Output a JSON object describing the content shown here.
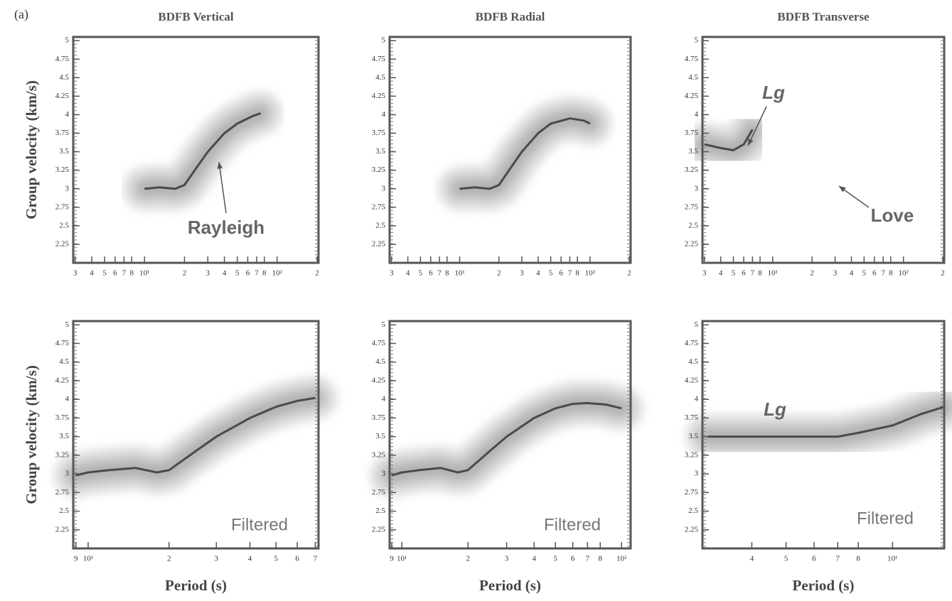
{
  "label": "(a)",
  "chart_data": [
    {
      "type": "line",
      "title": "BDFB Vertical",
      "ylabel": "Group velocity (km/s)",
      "annotations": [
        "Rayleigh"
      ],
      "xlog": true,
      "xlim": [
        2.9,
        205
      ],
      "ylim": [
        2,
        5.05
      ],
      "grid": false,
      "color": "#4a4a4a",
      "xticks": [
        3,
        4,
        5,
        6,
        7,
        8,
        {
          "value": 10,
          "label": "10¹"
        },
        {
          "value": 20,
          "label": "2"
        },
        {
          "value": 30,
          "label": "3"
        },
        {
          "value": 40,
          "label": "4"
        },
        {
          "value": 50,
          "label": "5"
        },
        {
          "value": 60,
          "label": "6"
        },
        {
          "value": 70,
          "label": "7"
        },
        {
          "value": 80,
          "label": "8"
        },
        {
          "value": 100,
          "label": "10²"
        },
        {
          "value": 200,
          "label": "2"
        }
      ],
      "yticks": [
        2.25,
        2.5,
        2.75,
        3,
        3.25,
        3.5,
        3.75,
        4,
        4.25,
        4.5,
        4.75,
        5
      ],
      "x": [
        10,
        13,
        17,
        20,
        25,
        30,
        40,
        50,
        65,
        75
      ],
      "values": [
        3.0,
        3.02,
        3.0,
        3.05,
        3.3,
        3.5,
        3.75,
        3.88,
        3.98,
        4.02
      ]
    },
    {
      "type": "line",
      "title": "BDFB Radial",
      "annotations": [],
      "xlog": true,
      "xlim": [
        2.9,
        205
      ],
      "ylim": [
        2,
        5.05
      ],
      "grid": false,
      "color": "#4a4a4a",
      "xticks": [
        3,
        4,
        5,
        6,
        7,
        8,
        {
          "value": 10,
          "label": "10¹"
        },
        {
          "value": 20,
          "label": "2"
        },
        {
          "value": 30,
          "label": "3"
        },
        {
          "value": 40,
          "label": "4"
        },
        {
          "value": 50,
          "label": "5"
        },
        {
          "value": 60,
          "label": "6"
        },
        {
          "value": 70,
          "label": "7"
        },
        {
          "value": 80,
          "label": "8"
        },
        {
          "value": 100,
          "label": "10²"
        },
        {
          "value": 200,
          "label": "2"
        }
      ],
      "yticks": [
        2.25,
        2.5,
        2.75,
        3,
        3.25,
        3.5,
        3.75,
        4,
        4.25,
        4.5,
        4.75,
        5
      ],
      "x": [
        10,
        13,
        17,
        20,
        25,
        30,
        40,
        50,
        70,
        90,
        100
      ],
      "values": [
        3.0,
        3.02,
        3.0,
        3.05,
        3.3,
        3.5,
        3.75,
        3.88,
        3.95,
        3.92,
        3.88
      ]
    },
    {
      "type": "line",
      "title": "BDFB Transverse",
      "annotations": [
        "Lg",
        "Love"
      ],
      "xlog": true,
      "xlim": [
        2.9,
        205
      ],
      "ylim": [
        2,
        5.05
      ],
      "grid": false,
      "color": "#4a4a4a",
      "xticks": [
        3,
        4,
        5,
        6,
        7,
        8,
        {
          "value": 10,
          "label": "10¹"
        },
        {
          "value": 20,
          "label": "2"
        },
        {
          "value": 30,
          "label": "3"
        },
        {
          "value": 40,
          "label": "4"
        },
        {
          "value": 50,
          "label": "5"
        },
        {
          "value": 60,
          "label": "6"
        },
        {
          "value": 70,
          "label": "7"
        },
        {
          "value": 80,
          "label": "8"
        },
        {
          "value": 100,
          "label": "10²"
        },
        {
          "value": 200,
          "label": "2"
        }
      ],
      "yticks": [
        2.25,
        2.5,
        2.75,
        3,
        3.25,
        3.5,
        3.75,
        4,
        4.25,
        4.5,
        4.75,
        5
      ],
      "x": [
        3,
        4,
        5,
        6,
        7
      ],
      "values": [
        3.6,
        3.55,
        3.52,
        3.6,
        3.8
      ]
    },
    {
      "type": "line",
      "ylabel": "Group velocity (km/s)",
      "xlabel": "Period (s)",
      "annotations": [
        "Filtered"
      ],
      "xlog": true,
      "xlim": [
        8.8,
        72
      ],
      "ylim": [
        2,
        5.05
      ],
      "grid": false,
      "color": "#4a4a4a",
      "xticks": [
        9,
        {
          "value": 10,
          "label": "10¹"
        },
        {
          "value": 20,
          "label": "2"
        },
        {
          "value": 30,
          "label": "3"
        },
        {
          "value": 40,
          "label": "4"
        },
        {
          "value": 50,
          "label": "5"
        },
        {
          "value": 60,
          "label": "6"
        },
        {
          "value": 70,
          "label": "7"
        }
      ],
      "yticks": [
        2.25,
        2.5,
        2.75,
        3,
        3.25,
        3.5,
        3.75,
        4,
        4.25,
        4.5,
        4.75,
        5
      ],
      "x": [
        9,
        10,
        12,
        15,
        18,
        20,
        25,
        30,
        40,
        50,
        60,
        70
      ],
      "values": [
        2.98,
        3.02,
        3.05,
        3.08,
        3.02,
        3.05,
        3.3,
        3.5,
        3.75,
        3.9,
        3.98,
        4.02
      ]
    },
    {
      "type": "line",
      "xlabel": "Period (s)",
      "annotations": [
        "Filtered"
      ],
      "xlog": true,
      "xlim": [
        8.8,
        110
      ],
      "ylim": [
        2,
        5.05
      ],
      "grid": false,
      "color": "#4a4a4a",
      "xticks": [
        9,
        {
          "value": 10,
          "label": "10¹"
        },
        {
          "value": 20,
          "label": "2"
        },
        {
          "value": 30,
          "label": "3"
        },
        {
          "value": 40,
          "label": "4"
        },
        {
          "value": 50,
          "label": "5"
        },
        {
          "value": 60,
          "label": "6"
        },
        {
          "value": 70,
          "label": "7"
        },
        {
          "value": 80,
          "label": "8"
        },
        {
          "value": 100,
          "label": "10²"
        }
      ],
      "yticks": [
        2.25,
        2.5,
        2.75,
        3,
        3.25,
        3.5,
        3.75,
        4,
        4.25,
        4.5,
        4.75,
        5
      ],
      "x": [
        9,
        10,
        12,
        15,
        18,
        20,
        25,
        30,
        40,
        50,
        60,
        70,
        85,
        100
      ],
      "values": [
        2.98,
        3.02,
        3.05,
        3.08,
        3.02,
        3.05,
        3.3,
        3.5,
        3.75,
        3.88,
        3.94,
        3.95,
        3.93,
        3.88
      ]
    },
    {
      "type": "line",
      "xlabel": "Period (s)",
      "annotations": [
        "Lg",
        "Filtered"
      ],
      "xlog": true,
      "xlim": [
        2.9,
        14
      ],
      "ylim": [
        2,
        5.05
      ],
      "grid": false,
      "color": "#4a4a4a",
      "xticks": [
        4,
        5,
        6,
        7,
        8,
        {
          "value": 10,
          "label": "10¹"
        }
      ],
      "yticks": [
        2.25,
        2.5,
        2.75,
        3,
        3.25,
        3.5,
        3.75,
        4,
        4.25,
        4.5,
        4.75,
        5
      ],
      "x": [
        3,
        4,
        5,
        6,
        7,
        8,
        10,
        12,
        14
      ],
      "values": [
        3.5,
        3.5,
        3.5,
        3.5,
        3.5,
        3.55,
        3.65,
        3.8,
        3.9
      ]
    }
  ]
}
